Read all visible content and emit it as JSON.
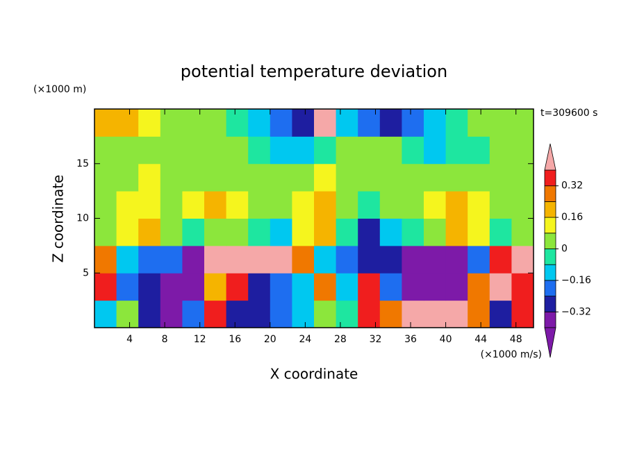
{
  "chart_data": {
    "type": "contour",
    "title": "potential temperature deviation",
    "xlabel": "X coordinate",
    "ylabel": "Z coordinate",
    "x_unit": "(×1000 m/s)",
    "y_unit": "(×1000 m)",
    "annotation": "t=309600 s",
    "xlim": [
      0,
      50
    ],
    "ylim": [
      0,
      20
    ],
    "xticks": [
      4,
      8,
      12,
      16,
      20,
      24,
      28,
      32,
      36,
      40,
      44,
      48
    ],
    "yticks": [
      5,
      10,
      15
    ],
    "x": [
      1.25,
      3.75,
      6.25,
      8.75,
      11.25,
      13.75,
      16.25,
      18.75,
      21.25,
      23.75,
      26.25,
      28.75,
      31.25,
      33.75,
      36.25,
      38.75,
      41.25,
      43.75,
      46.25,
      48.75
    ],
    "y": [
      1.25,
      3.75,
      6.25,
      8.75,
      11.25,
      13.75,
      16.25,
      18.75
    ],
    "z": [
      [
        -0.12,
        0.04,
        -0.28,
        -0.45,
        -0.2,
        0.36,
        -0.28,
        -0.28,
        -0.2,
        -0.12,
        0.04,
        -0.04,
        0.36,
        0.28,
        0.45,
        0.45,
        0.45,
        0.28,
        -0.28,
        0.36
      ],
      [
        0.36,
        -0.2,
        -0.28,
        -0.45,
        -0.45,
        0.2,
        0.36,
        -0.28,
        -0.2,
        -0.12,
        0.28,
        -0.12,
        0.36,
        -0.2,
        -0.45,
        -0.45,
        -0.45,
        0.28,
        0.45,
        0.36
      ],
      [
        0.28,
        -0.12,
        -0.2,
        -0.2,
        -0.45,
        0.45,
        0.45,
        0.45,
        0.45,
        0.28,
        -0.12,
        -0.2,
        -0.28,
        -0.28,
        -0.45,
        -0.45,
        -0.45,
        -0.2,
        0.36,
        0.45
      ],
      [
        0.04,
        0.12,
        0.2,
        0.04,
        -0.04,
        0.04,
        0.04,
        -0.04,
        -0.12,
        0.12,
        0.2,
        -0.04,
        -0.28,
        -0.12,
        -0.04,
        0.04,
        0.2,
        0.12,
        -0.04,
        0.04
      ],
      [
        0.04,
        0.12,
        0.12,
        0.04,
        0.12,
        0.2,
        0.12,
        0.04,
        0.04,
        0.12,
        0.2,
        0.04,
        -0.04,
        0.04,
        0.04,
        0.12,
        0.2,
        0.12,
        0.04,
        0.04
      ],
      [
        0.04,
        0.04,
        0.12,
        0.04,
        0.04,
        0.04,
        0.04,
        0.04,
        0.04,
        0.04,
        0.12,
        0.04,
        0.04,
        0.04,
        0.04,
        0.04,
        0.04,
        0.04,
        0.04,
        0.04
      ],
      [
        0.04,
        0.04,
        0.04,
        0.04,
        0.04,
        0.04,
        0.04,
        -0.04,
        -0.12,
        -0.12,
        -0.04,
        0.04,
        0.04,
        0.04,
        -0.04,
        -0.12,
        -0.04,
        -0.04,
        0.04,
        0.04
      ],
      [
        0.2,
        0.2,
        0.12,
        0.04,
        0.04,
        0.04,
        -0.04,
        -0.12,
        -0.2,
        -0.28,
        0.45,
        -0.12,
        -0.2,
        -0.28,
        -0.2,
        -0.12,
        -0.04,
        0.04,
        0.04,
        0.04
      ]
    ],
    "colorbar": {
      "levels": [
        -0.4,
        -0.32,
        -0.24,
        -0.16,
        -0.08,
        0,
        0.08,
        0.16,
        0.24,
        0.32,
        0.4
      ],
      "colors": [
        "#7d1aa8",
        "#7d1aa8",
        "#1e1ea0",
        "#1e6ef0",
        "#00c8f0",
        "#1ee6a0",
        "#8ce63c",
        "#f5f51e",
        "#f5b400",
        "#f07800",
        "#f01e1e",
        "#f5a8a8"
      ],
      "ticks": [
        {
          "value": -0.32,
          "label": "−0.32"
        },
        {
          "value": -0.16,
          "label": "−0.16"
        },
        0,
        0.16,
        0.32
      ]
    }
  }
}
